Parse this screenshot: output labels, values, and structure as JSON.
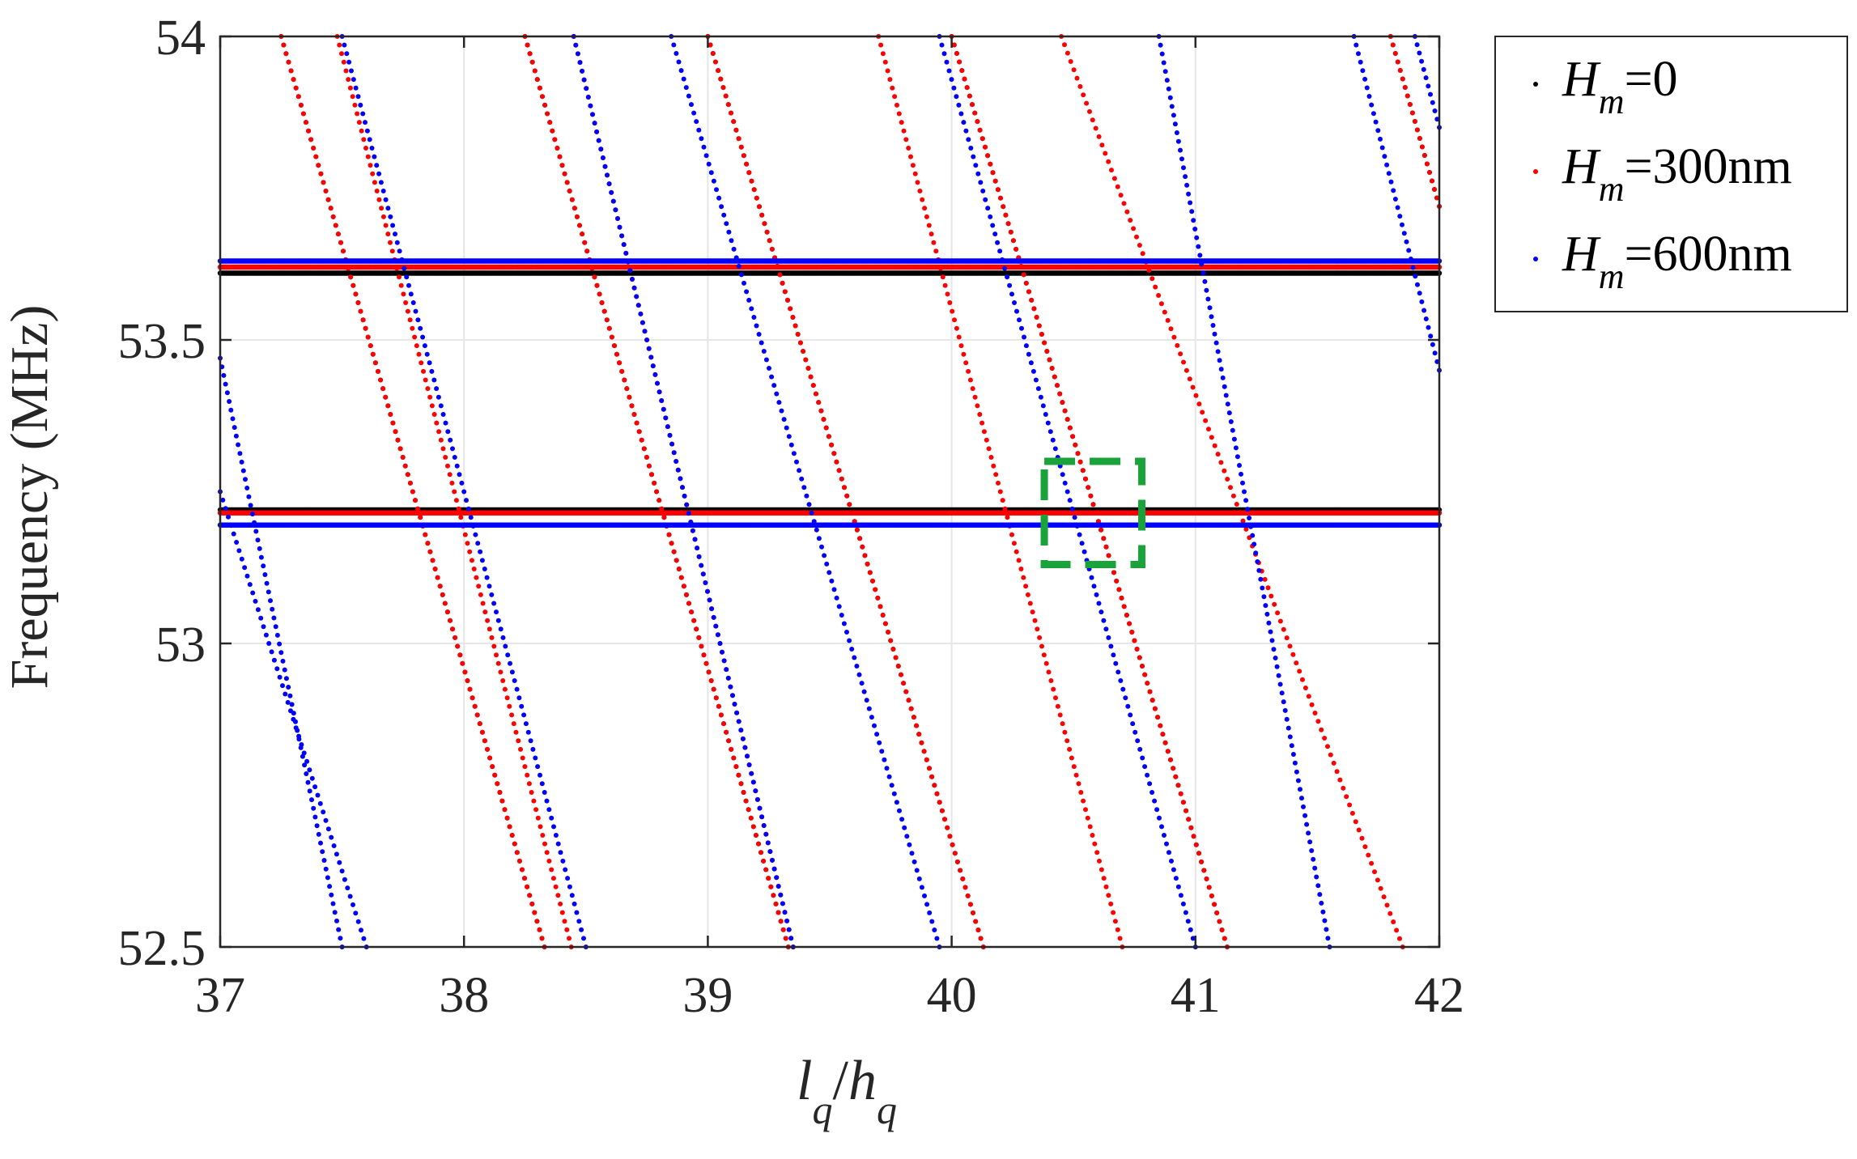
{
  "chart_data": {
    "type": "scatter",
    "title": "",
    "xlabel": {
      "base": "l",
      "sub": "q",
      "slash": "/",
      "base2": "h",
      "sub2": "q"
    },
    "ylabel": "Frequency (MHz)",
    "xlim": [
      37,
      42
    ],
    "ylim": [
      52.5,
      54
    ],
    "xticks": [
      37,
      38,
      39,
      40,
      41,
      42
    ],
    "xtick_labels": [
      "37",
      "38",
      "39",
      "40",
      "41",
      "42"
    ],
    "yticks": [
      52.5,
      53,
      53.5,
      54
    ],
    "ytick_labels": [
      "52.5",
      "53",
      "53.5",
      "54"
    ],
    "grid": true,
    "legend_position": "outside top-right",
    "series": [
      {
        "name": "Hm=0",
        "label_base": "H",
        "label_sub": "m",
        "label_rest": "=0",
        "color": "#000000",
        "flat_bands": [
          53.61,
          53.22
        ],
        "dispersive_lines": [
          [
            37.25,
            54.0,
            38.33,
            52.5
          ],
          [
            38.25,
            54.0,
            39.33,
            52.5
          ],
          [
            39.0,
            54.0,
            40.13,
            52.5
          ],
          [
            40.0,
            54.0,
            41.13,
            52.5
          ],
          [
            41.8,
            54.0,
            42.0,
            53.72
          ]
        ]
      },
      {
        "name": "Hm=300nm",
        "label_base": "H",
        "label_sub": "m",
        "label_rest": "=300nm",
        "color": "#ff0000",
        "flat_bands": [
          53.62,
          53.215
        ],
        "dispersive_lines": [
          [
            37.25,
            54.0,
            38.33,
            52.5
          ],
          [
            38.25,
            54.0,
            39.33,
            52.5
          ],
          [
            39.0,
            54.0,
            40.13,
            52.5
          ],
          [
            40.0,
            54.0,
            41.13,
            52.5
          ],
          [
            41.8,
            54.0,
            42.0,
            53.72
          ],
          [
            37.48,
            54.0,
            38.44,
            52.5
          ],
          [
            38.45,
            54.0,
            39.35,
            52.5
          ],
          [
            39.7,
            54.0,
            40.7,
            52.5
          ],
          [
            40.45,
            54.0,
            41.85,
            52.5
          ]
        ]
      },
      {
        "name": "Hm=600nm",
        "label_base": "H",
        "label_sub": "m",
        "label_rest": "=600nm",
        "color": "#0000ff",
        "flat_bands": [
          53.63,
          53.195
        ],
        "dispersive_lines": [
          [
            37.0,
            53.47,
            37.5,
            52.5
          ],
          [
            37.0,
            53.25,
            37.6,
            52.5
          ],
          [
            37.5,
            54.0,
            38.5,
            52.5
          ],
          [
            38.45,
            54.0,
            39.35,
            52.5
          ],
          [
            38.85,
            54.0,
            39.95,
            52.5
          ],
          [
            39.95,
            54.0,
            41.0,
            52.5
          ],
          [
            40.85,
            54.0,
            41.55,
            52.5
          ],
          [
            41.65,
            54.0,
            42.0,
            53.45
          ],
          [
            41.9,
            54.0,
            42.0,
            53.85
          ]
        ]
      }
    ],
    "annotations": [
      {
        "type": "dashed-box",
        "color": "#1aa33b",
        "x_range": [
          40.38,
          40.78
        ],
        "y_range": [
          53.13,
          53.3
        ]
      }
    ]
  }
}
